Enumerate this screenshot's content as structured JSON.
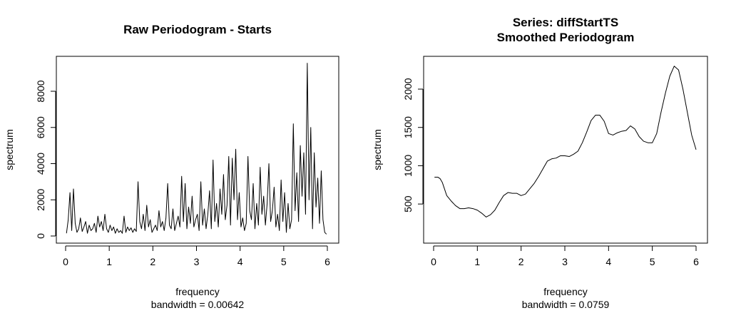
{
  "chart_data": [
    {
      "type": "line",
      "title": "Raw Periodogram - Starts",
      "subtitle": "",
      "xlabel": "frequency",
      "sublabel": "bandwidth = 0.00642",
      "ylabel": "spectrum",
      "xlim": [
        0,
        6
      ],
      "ylim": [
        0,
        9600
      ],
      "xticks": [
        0,
        1,
        2,
        3,
        4,
        5,
        6
      ],
      "yticks": [
        0,
        2000,
        4000,
        6000,
        8000
      ],
      "grid": false,
      "legend": "none",
      "series": [
        {
          "x": [
            0.02,
            0.06,
            0.1,
            0.14,
            0.18,
            0.22,
            0.26,
            0.3,
            0.34,
            0.38,
            0.42,
            0.46,
            0.5,
            0.54,
            0.58,
            0.62,
            0.66,
            0.7,
            0.74,
            0.78,
            0.82,
            0.86,
            0.9,
            0.94,
            0.98,
            1.02,
            1.06,
            1.1,
            1.14,
            1.18,
            1.22,
            1.26,
            1.3,
            1.34,
            1.38,
            1.42,
            1.46,
            1.5,
            1.54,
            1.58,
            1.62,
            1.66,
            1.7,
            1.74,
            1.78,
            1.82,
            1.86,
            1.9,
            1.94,
            1.98,
            2.02,
            2.06,
            2.1,
            2.14,
            2.18,
            2.22,
            2.26,
            2.3,
            2.34,
            2.38,
            2.42,
            2.46,
            2.5,
            2.54,
            2.58,
            2.62,
            2.66,
            2.7,
            2.74,
            2.78,
            2.82,
            2.86,
            2.9,
            2.94,
            2.98,
            3.02,
            3.06,
            3.1,
            3.14,
            3.18,
            3.22,
            3.26,
            3.3,
            3.34,
            3.38,
            3.42,
            3.46,
            3.5,
            3.54,
            3.58,
            3.62,
            3.66,
            3.7,
            3.74,
            3.78,
            3.82,
            3.86,
            3.9,
            3.94,
            3.98,
            4.02,
            4.06,
            4.1,
            4.14,
            4.18,
            4.22,
            4.26,
            4.3,
            4.34,
            4.38,
            4.42,
            4.46,
            4.5,
            4.54,
            4.58,
            4.62,
            4.66,
            4.7,
            4.74,
            4.78,
            4.82,
            4.86,
            4.9,
            4.94,
            4.98,
            5.02,
            5.06,
            5.1,
            5.14,
            5.18,
            5.22,
            5.26,
            5.3,
            5.34,
            5.38,
            5.42,
            5.46,
            5.5,
            5.54,
            5.58,
            5.62,
            5.66,
            5.7,
            5.74,
            5.78,
            5.82,
            5.86,
            5.9,
            5.94,
            5.98
          ],
          "y": [
            150,
            900,
            2400,
            300,
            2600,
            700,
            200,
            400,
            1000,
            250,
            500,
            800,
            150,
            600,
            300,
            400,
            700,
            200,
            1100,
            500,
            800,
            300,
            1200,
            400,
            200,
            600,
            300,
            500,
            150,
            400,
            200,
            300,
            150,
            1100,
            200,
            500,
            300,
            450,
            200,
            400,
            250,
            3000,
            800,
            400,
            1200,
            300,
            1700,
            500,
            900,
            200,
            400,
            600,
            300,
            1400,
            500,
            800,
            300,
            1000,
            2900,
            600,
            400,
            1500,
            300,
            700,
            1100,
            500,
            3300,
            800,
            2900,
            400,
            1600,
            700,
            2200,
            500,
            900,
            1200,
            300,
            3000,
            600,
            1500,
            400,
            1200,
            2500,
            400,
            4200,
            800,
            1800,
            500,
            2600,
            1200,
            3400,
            900,
            1700,
            4400,
            600,
            4300,
            2000,
            4800,
            900,
            2400,
            500,
            1000,
            300,
            700,
            4400,
            1400,
            900,
            2900,
            400,
            1800,
            600,
            3800,
            1200,
            2200,
            600,
            1800,
            4000,
            800,
            1400,
            2700,
            500,
            1200,
            300,
            3100,
            800,
            2400,
            200,
            1800,
            400,
            900,
            6200,
            1400,
            3500,
            800,
            5000,
            2200,
            4600,
            1200,
            9550,
            2000,
            6000,
            400,
            4600,
            1600,
            3200,
            700,
            3600,
            900,
            200,
            100
          ],
          "name": ""
        }
      ]
    },
    {
      "type": "line",
      "title": "Series: diffStartTS",
      "subtitle": "Smoothed Periodogram",
      "xlabel": "frequency",
      "sublabel": "bandwidth = 0.0759",
      "ylabel": "spectrum",
      "xlim": [
        0,
        6
      ],
      "ylim": [
        290,
        2320
      ],
      "xticks": [
        0,
        1,
        2,
        3,
        4,
        5,
        6
      ],
      "yticks": [
        500,
        1000,
        1500,
        2000
      ],
      "grid": false,
      "legend": "none",
      "series": [
        {
          "x": [
            0.02,
            0.1,
            0.15,
            0.2,
            0.3,
            0.4,
            0.5,
            0.6,
            0.7,
            0.8,
            0.9,
            1.0,
            1.1,
            1.2,
            1.3,
            1.4,
            1.5,
            1.6,
            1.7,
            1.8,
            1.9,
            2.0,
            2.1,
            2.2,
            2.3,
            2.4,
            2.5,
            2.6,
            2.7,
            2.8,
            2.9,
            3.0,
            3.1,
            3.2,
            3.3,
            3.4,
            3.5,
            3.6,
            3.7,
            3.8,
            3.9,
            4.0,
            4.1,
            4.2,
            4.3,
            4.4,
            4.5,
            4.6,
            4.7,
            4.8,
            4.9,
            5.0,
            5.1,
            5.2,
            5.3,
            5.4,
            5.5,
            5.6,
            5.7,
            5.8,
            5.9,
            6.0
          ],
          "y": [
            850,
            850,
            830,
            780,
            610,
            540,
            480,
            440,
            440,
            450,
            440,
            420,
            380,
            330,
            360,
            420,
            520,
            610,
            650,
            640,
            640,
            610,
            630,
            700,
            770,
            860,
            960,
            1060,
            1090,
            1100,
            1130,
            1130,
            1120,
            1150,
            1190,
            1300,
            1440,
            1590,
            1660,
            1660,
            1580,
            1420,
            1400,
            1430,
            1450,
            1460,
            1520,
            1480,
            1380,
            1320,
            1300,
            1300,
            1420,
            1700,
            1950,
            2170,
            2300,
            2250,
            2000,
            1700,
            1400,
            1210
          ],
          "name": ""
        }
      ]
    }
  ]
}
